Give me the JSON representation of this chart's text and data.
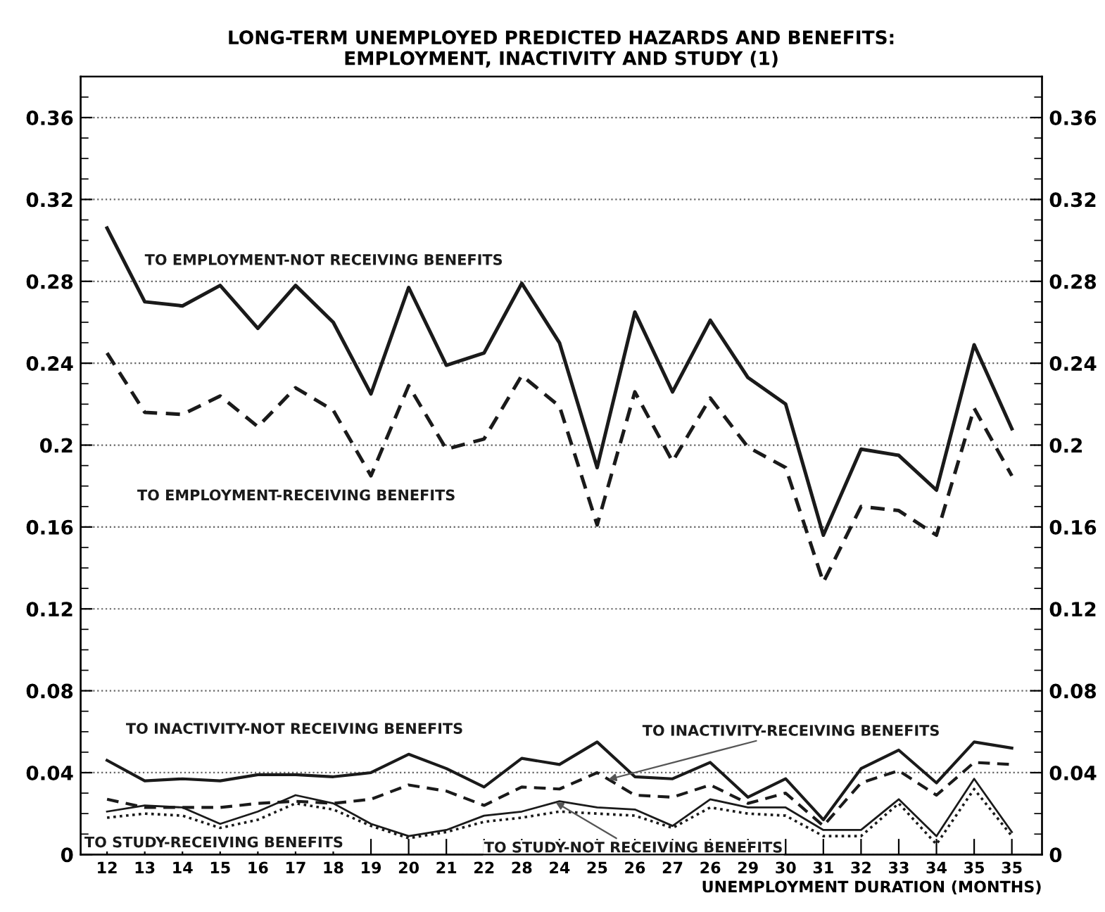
{
  "chart_data": {
    "type": "line",
    "title": "LONG-TERM UNEMPLOYED PREDICTED HAZARDS AND BENEFITS:\nEMPLOYMENT, INACTIVITY AND STUDY (1)",
    "xlabel": "UNEMPLOYMENT DURATION (MONTHS)",
    "categories": [
      "12",
      "13",
      "14",
      "15",
      "16",
      "17",
      "18",
      "19",
      "20",
      "21",
      "22",
      "28",
      "24",
      "25",
      "26",
      "27",
      "26",
      "29",
      "30",
      "31",
      "32",
      "33",
      "34",
      "35",
      "35"
    ],
    "series": [
      {
        "name": "TO EMPLOYMENT-NOT RECEIVING BENEFITS",
        "color": "#1a1a1a",
        "line_style": "solid",
        "values": [
          0.306,
          0.27,
          0.268,
          0.278,
          0.257,
          0.278,
          0.26,
          0.225,
          0.277,
          0.239,
          0.245,
          0.279,
          0.25,
          0.189,
          0.265,
          0.226,
          0.261,
          0.233,
          0.22,
          0.156,
          0.198,
          0.195,
          0.178,
          0.249,
          0.208
        ]
      },
      {
        "name": "TO EMPLOYMENT-RECEIVING BENEFITS",
        "color": "#1a1a1a",
        "line_style": "dashed",
        "values": [
          0.245,
          0.216,
          0.215,
          0.224,
          0.209,
          0.228,
          0.217,
          0.185,
          0.229,
          0.198,
          0.203,
          0.234,
          0.219,
          0.161,
          0.226,
          0.192,
          0.223,
          0.199,
          0.189,
          0.133,
          0.17,
          0.168,
          0.156,
          0.218,
          0.185
        ]
      },
      {
        "name": "TO INACTIVITY-NOT RECEIVING BENEFITS",
        "color": "#1a1a1a",
        "line_style": "solid",
        "values": [
          0.046,
          0.036,
          0.037,
          0.036,
          0.039,
          0.039,
          0.038,
          0.04,
          0.049,
          0.042,
          0.033,
          0.047,
          0.044,
          0.055,
          0.038,
          0.037,
          0.045,
          0.028,
          0.037,
          0.017,
          0.042,
          0.051,
          0.035,
          0.055,
          0.052
        ]
      },
      {
        "name": "TO INACTIVITY-RECEIVING BENEFITS",
        "color": "#1a1a1a",
        "line_style": "dashed",
        "values": [
          0.027,
          0.023,
          0.023,
          0.023,
          0.025,
          0.026,
          0.025,
          0.027,
          0.034,
          0.031,
          0.024,
          0.033,
          0.032,
          0.04,
          0.029,
          0.028,
          0.034,
          0.025,
          0.03,
          0.014,
          0.035,
          0.041,
          0.029,
          0.045,
          0.044
        ]
      },
      {
        "name": "TO STUDY-NOT RECEIVING BENEFITS",
        "color": "#1a1a1a",
        "line_style": "solid",
        "values": [
          0.021,
          0.024,
          0.023,
          0.015,
          0.021,
          0.029,
          0.025,
          0.015,
          0.009,
          0.012,
          0.019,
          0.021,
          0.026,
          0.023,
          0.022,
          0.014,
          0.027,
          0.023,
          0.023,
          0.012,
          0.012,
          0.027,
          0.009,
          0.037,
          0.011
        ]
      },
      {
        "name": "TO STUDY-RECEIVING BENEFITS",
        "color": "#1a1a1a",
        "line_style": "dotted",
        "values": [
          0.018,
          0.02,
          0.019,
          0.013,
          0.017,
          0.025,
          0.022,
          0.014,
          0.008,
          0.011,
          0.016,
          0.018,
          0.021,
          0.02,
          0.019,
          0.013,
          0.023,
          0.02,
          0.019,
          0.009,
          0.009,
          0.025,
          0.005,
          0.032,
          0.009
        ]
      }
    ],
    "ylim": [
      0,
      0.38
    ],
    "yticks": [
      0,
      0.04,
      0.08,
      0.12,
      0.16,
      0.2,
      0.24,
      0.28,
      0.32,
      0.36
    ],
    "y2lim": [
      0,
      0.38
    ],
    "y2ticks": [
      0,
      0.04,
      0.08,
      0.12,
      0.16,
      0.2,
      0.24,
      0.28,
      0.32,
      0.36
    ],
    "grid": "y"
  }
}
